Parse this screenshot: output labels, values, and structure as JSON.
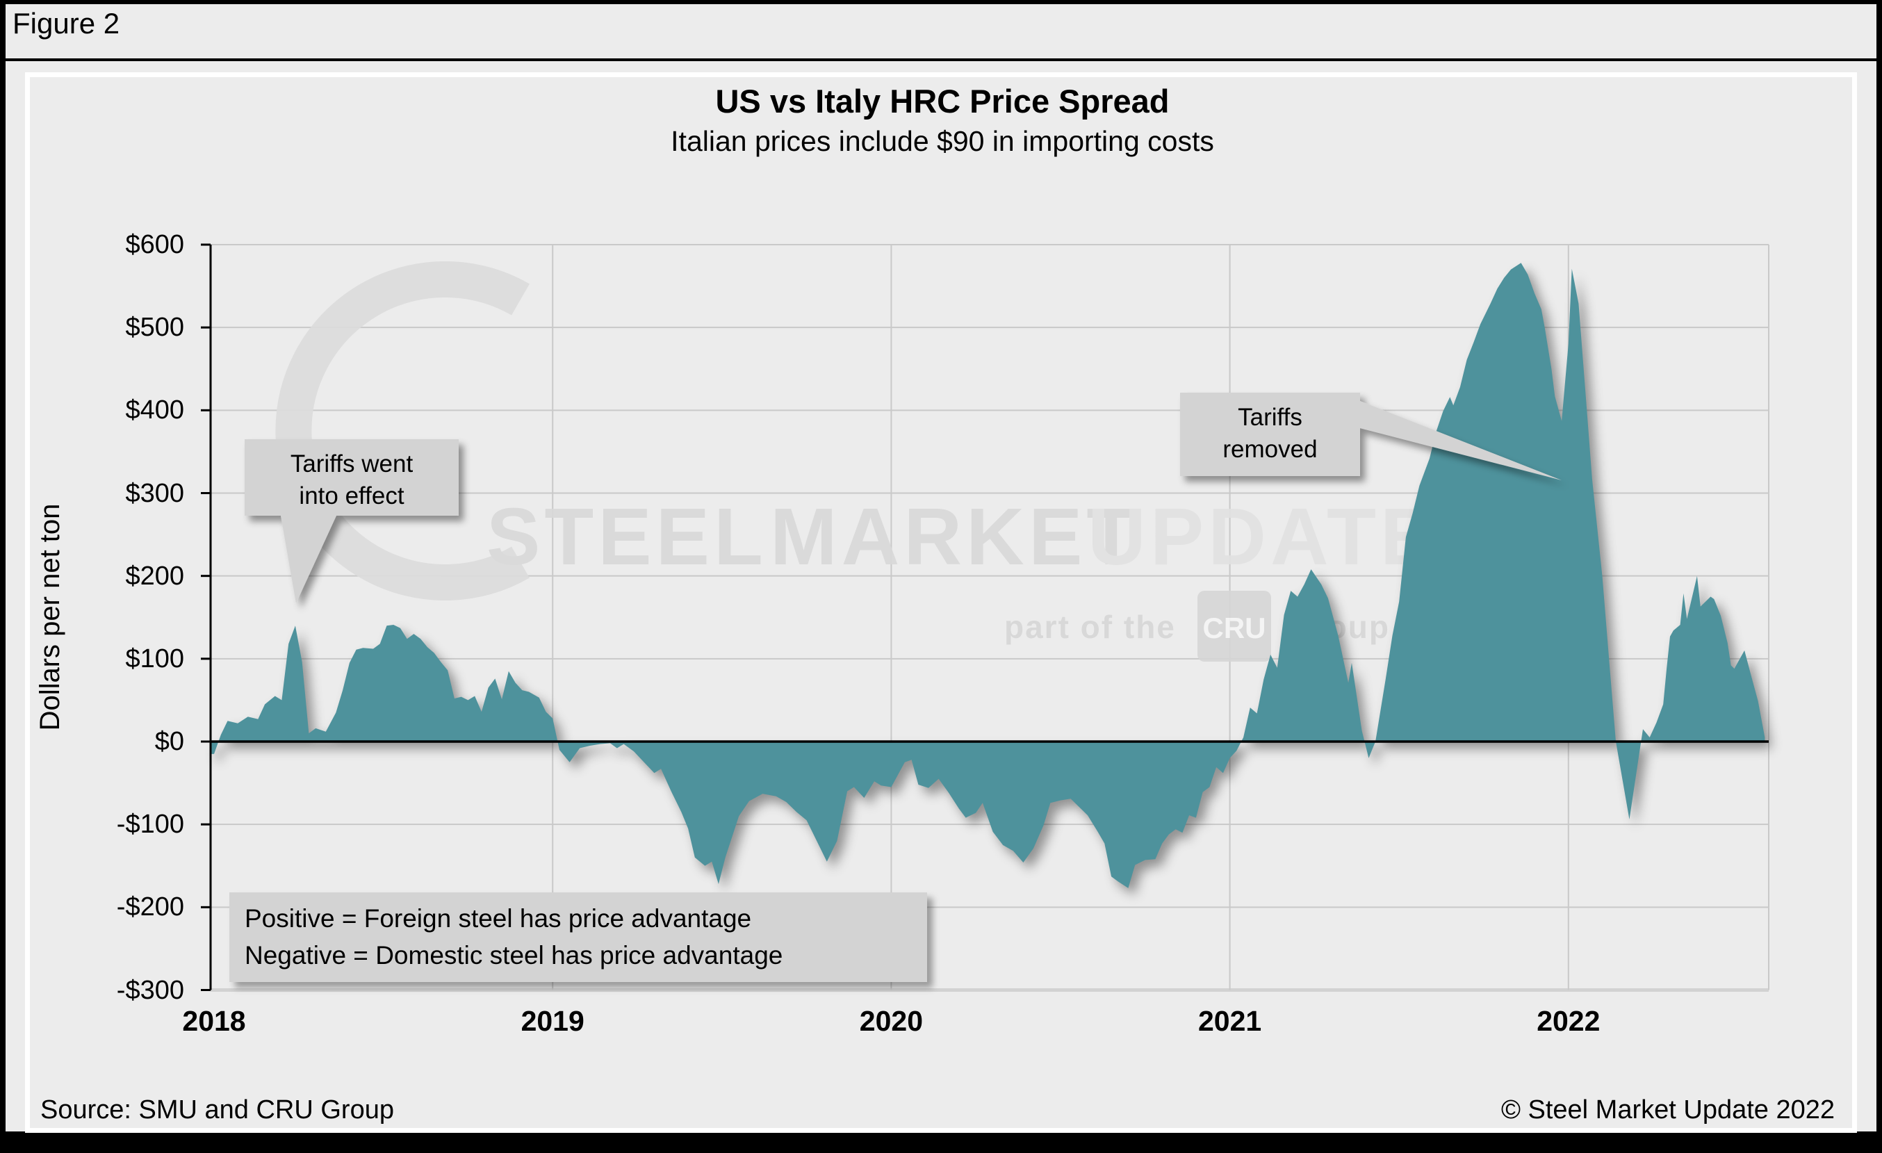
{
  "figure_label": "Figure 2",
  "colors": {
    "area": "#4e929c",
    "background": "#ececec",
    "callout_bg": "#d3d3d3",
    "gridline": "#c9c9c9",
    "axis": "#000000",
    "plot_bottom_line": "#d2d2d2",
    "watermark": "#d9d9d9"
  },
  "watermark": {
    "steel": "STEEL",
    "market": "MARKET",
    "update": "UPDATE",
    "part_of": "part of the",
    "cru": "CRU",
    "group": "Group"
  },
  "annotations": {
    "tariffs_on": "Tariffs went\ninto effect",
    "tariffs_off": "Tariffs\nremoved",
    "note": "Positive = Foreign steel has price advantage\nNegative = Domestic steel has price advantage"
  },
  "footer": {
    "source": "Source: SMU and CRU Group",
    "copyright": "© Steel Market Update 2022"
  },
  "chart_data": {
    "type": "area",
    "title": "US vs Italy HRC Price Spread",
    "subtitle": "Italian prices include $90 in importing costs",
    "xlabel": "",
    "ylabel": "Dollars per net ton",
    "ylim": [
      -300,
      600
    ],
    "ytick_step": 100,
    "ytick_values": [
      600,
      500,
      400,
      300,
      200,
      100,
      0,
      -100,
      -200,
      -300
    ],
    "ytick_labels": [
      "$600",
      "$500",
      "$400",
      "$300",
      "$200",
      "$100",
      "$0",
      "-$100",
      "-$200",
      "-$300"
    ],
    "xtick_years": [
      2018,
      2019,
      2020,
      2021,
      2022
    ],
    "xtick_labels": [
      "2018",
      "2019",
      "2020",
      "2021",
      "2022"
    ],
    "x_end": 2022.59,
    "grid": true,
    "legend_position": "none",
    "annotations": [
      {
        "text": "Tariffs went into effect",
        "points_to_x": 2018.24,
        "points_to_y": 150
      },
      {
        "text": "Tariffs removed",
        "points_to_x": 2021.98,
        "points_to_y": 390
      }
    ],
    "note": "Positive = Foreign steel has price advantage; Negative = Domestic steel has price advantage",
    "series": [
      {
        "name": "US minus Italy HRC price spread",
        "unit": "USD per net ton",
        "points": [
          [
            2018.0,
            -15
          ],
          [
            2018.02,
            8
          ],
          [
            2018.04,
            25
          ],
          [
            2018.07,
            22
          ],
          [
            2018.1,
            30
          ],
          [
            2018.13,
            27
          ],
          [
            2018.15,
            45
          ],
          [
            2018.18,
            55
          ],
          [
            2018.2,
            50
          ],
          [
            2018.22,
            118
          ],
          [
            2018.24,
            140
          ],
          [
            2018.26,
            96
          ],
          [
            2018.28,
            10
          ],
          [
            2018.3,
            16
          ],
          [
            2018.33,
            12
          ],
          [
            2018.36,
            35
          ],
          [
            2018.38,
            62
          ],
          [
            2018.4,
            95
          ],
          [
            2018.42,
            111
          ],
          [
            2018.44,
            113
          ],
          [
            2018.47,
            112
          ],
          [
            2018.49,
            118
          ],
          [
            2018.51,
            140
          ],
          [
            2018.53,
            141
          ],
          [
            2018.55,
            137
          ],
          [
            2018.57,
            124
          ],
          [
            2018.59,
            130
          ],
          [
            2018.61,
            124
          ],
          [
            2018.63,
            114
          ],
          [
            2018.65,
            107
          ],
          [
            2018.67,
            96
          ],
          [
            2018.69,
            86
          ],
          [
            2018.71,
            52
          ],
          [
            2018.73,
            54
          ],
          [
            2018.75,
            50
          ],
          [
            2018.77,
            55
          ],
          [
            2018.79,
            36
          ],
          [
            2018.81,
            65
          ],
          [
            2018.83,
            76
          ],
          [
            2018.85,
            51
          ],
          [
            2018.87,
            85
          ],
          [
            2018.89,
            71
          ],
          [
            2018.91,
            62
          ],
          [
            2018.93,
            60
          ],
          [
            2018.96,
            53
          ],
          [
            2018.98,
            36
          ],
          [
            2019.0,
            28
          ],
          [
            2019.02,
            -10
          ],
          [
            2019.05,
            -25
          ],
          [
            2019.08,
            -8
          ],
          [
            2019.11,
            -5
          ],
          [
            2019.14,
            -3
          ],
          [
            2019.17,
            -2
          ],
          [
            2019.19,
            -8
          ],
          [
            2019.21,
            -3
          ],
          [
            2019.24,
            -12
          ],
          [
            2019.27,
            -25
          ],
          [
            2019.3,
            -38
          ],
          [
            2019.32,
            -33
          ],
          [
            2019.35,
            -60
          ],
          [
            2019.38,
            -85
          ],
          [
            2019.4,
            -105
          ],
          [
            2019.42,
            -140
          ],
          [
            2019.45,
            -150
          ],
          [
            2019.47,
            -145
          ],
          [
            2019.49,
            -172
          ],
          [
            2019.51,
            -140
          ],
          [
            2019.55,
            -90
          ],
          [
            2019.58,
            -72
          ],
          [
            2019.62,
            -63
          ],
          [
            2019.66,
            -66
          ],
          [
            2019.69,
            -73
          ],
          [
            2019.72,
            -85
          ],
          [
            2019.75,
            -95
          ],
          [
            2019.78,
            -120
          ],
          [
            2019.81,
            -145
          ],
          [
            2019.84,
            -120
          ],
          [
            2019.87,
            -60
          ],
          [
            2019.89,
            -55
          ],
          [
            2019.92,
            -68
          ],
          [
            2019.95,
            -48
          ],
          [
            2019.97,
            -53
          ],
          [
            2020.0,
            -55
          ],
          [
            2020.04,
            -25
          ],
          [
            2020.06,
            -22
          ],
          [
            2020.08,
            -52
          ],
          [
            2020.11,
            -56
          ],
          [
            2020.14,
            -45
          ],
          [
            2020.17,
            -62
          ],
          [
            2020.2,
            -81
          ],
          [
            2020.22,
            -92
          ],
          [
            2020.25,
            -86
          ],
          [
            2020.27,
            -74
          ],
          [
            2020.3,
            -109
          ],
          [
            2020.33,
            -125
          ],
          [
            2020.36,
            -132
          ],
          [
            2020.39,
            -146
          ],
          [
            2020.42,
            -129
          ],
          [
            2020.45,
            -101
          ],
          [
            2020.47,
            -74
          ],
          [
            2020.5,
            -71
          ],
          [
            2020.53,
            -69
          ],
          [
            2020.56,
            -81
          ],
          [
            2020.58,
            -89
          ],
          [
            2020.61,
            -109
          ],
          [
            2020.63,
            -123
          ],
          [
            2020.65,
            -163
          ],
          [
            2020.67,
            -169
          ],
          [
            2020.7,
            -177
          ],
          [
            2020.72,
            -149
          ],
          [
            2020.75,
            -143
          ],
          [
            2020.78,
            -142
          ],
          [
            2020.8,
            -123
          ],
          [
            2020.82,
            -112
          ],
          [
            2020.84,
            -106
          ],
          [
            2020.86,
            -110
          ],
          [
            2020.88,
            -89
          ],
          [
            2020.9,
            -92
          ],
          [
            2020.92,
            -61
          ],
          [
            2020.94,
            -55
          ],
          [
            2020.96,
            -31
          ],
          [
            2020.98,
            -38
          ],
          [
            2021.0,
            -20
          ],
          [
            2021.02,
            -11
          ],
          [
            2021.04,
            5
          ],
          [
            2021.06,
            41
          ],
          [
            2021.08,
            34
          ],
          [
            2021.1,
            75
          ],
          [
            2021.12,
            105
          ],
          [
            2021.14,
            89
          ],
          [
            2021.16,
            153
          ],
          [
            2021.18,
            182
          ],
          [
            2021.2,
            175
          ],
          [
            2021.22,
            190
          ],
          [
            2021.24,
            208
          ],
          [
            2021.27,
            190
          ],
          [
            2021.29,
            173
          ],
          [
            2021.32,
            128
          ],
          [
            2021.35,
            71
          ],
          [
            2021.36,
            95
          ],
          [
            2021.39,
            13
          ],
          [
            2021.41,
            -20
          ],
          [
            2021.43,
            0
          ],
          [
            2021.46,
            75
          ],
          [
            2021.48,
            128
          ],
          [
            2021.5,
            169
          ],
          [
            2021.52,
            247
          ],
          [
            2021.54,
            276
          ],
          [
            2021.56,
            309
          ],
          [
            2021.59,
            342
          ],
          [
            2021.61,
            375
          ],
          [
            2021.63,
            399
          ],
          [
            2021.65,
            416
          ],
          [
            2021.66,
            406
          ],
          [
            2021.68,
            428
          ],
          [
            2021.7,
            461
          ],
          [
            2021.72,
            482
          ],
          [
            2021.74,
            504
          ],
          [
            2021.77,
            529
          ],
          [
            2021.79,
            547
          ],
          [
            2021.81,
            560
          ],
          [
            2021.83,
            570
          ],
          [
            2021.86,
            578
          ],
          [
            2021.88,
            564
          ],
          [
            2021.9,
            541
          ],
          [
            2021.92,
            522
          ],
          [
            2021.93,
            500
          ],
          [
            2021.95,
            450
          ],
          [
            2021.96,
            417
          ],
          [
            2021.98,
            387
          ],
          [
            2022.0,
            480
          ],
          [
            2022.01,
            571
          ],
          [
            2022.03,
            529
          ],
          [
            2022.05,
            423
          ],
          [
            2022.07,
            317
          ],
          [
            2022.1,
            200
          ],
          [
            2022.12,
            99
          ],
          [
            2022.14,
            0
          ],
          [
            2022.18,
            -94
          ],
          [
            2022.22,
            15
          ],
          [
            2022.24,
            5
          ],
          [
            2022.26,
            23
          ],
          [
            2022.28,
            45
          ],
          [
            2022.29,
            88
          ],
          [
            2022.3,
            127
          ],
          [
            2022.31,
            134
          ],
          [
            2022.33,
            141
          ],
          [
            2022.34,
            179
          ],
          [
            2022.35,
            148
          ],
          [
            2022.38,
            200
          ],
          [
            2022.39,
            163
          ],
          [
            2022.42,
            175
          ],
          [
            2022.43,
            172
          ],
          [
            2022.45,
            152
          ],
          [
            2022.47,
            119
          ],
          [
            2022.48,
            92
          ],
          [
            2022.49,
            88
          ],
          [
            2022.52,
            110
          ],
          [
            2022.54,
            79
          ],
          [
            2022.56,
            49
          ],
          [
            2022.58,
            5
          ]
        ]
      }
    ]
  }
}
